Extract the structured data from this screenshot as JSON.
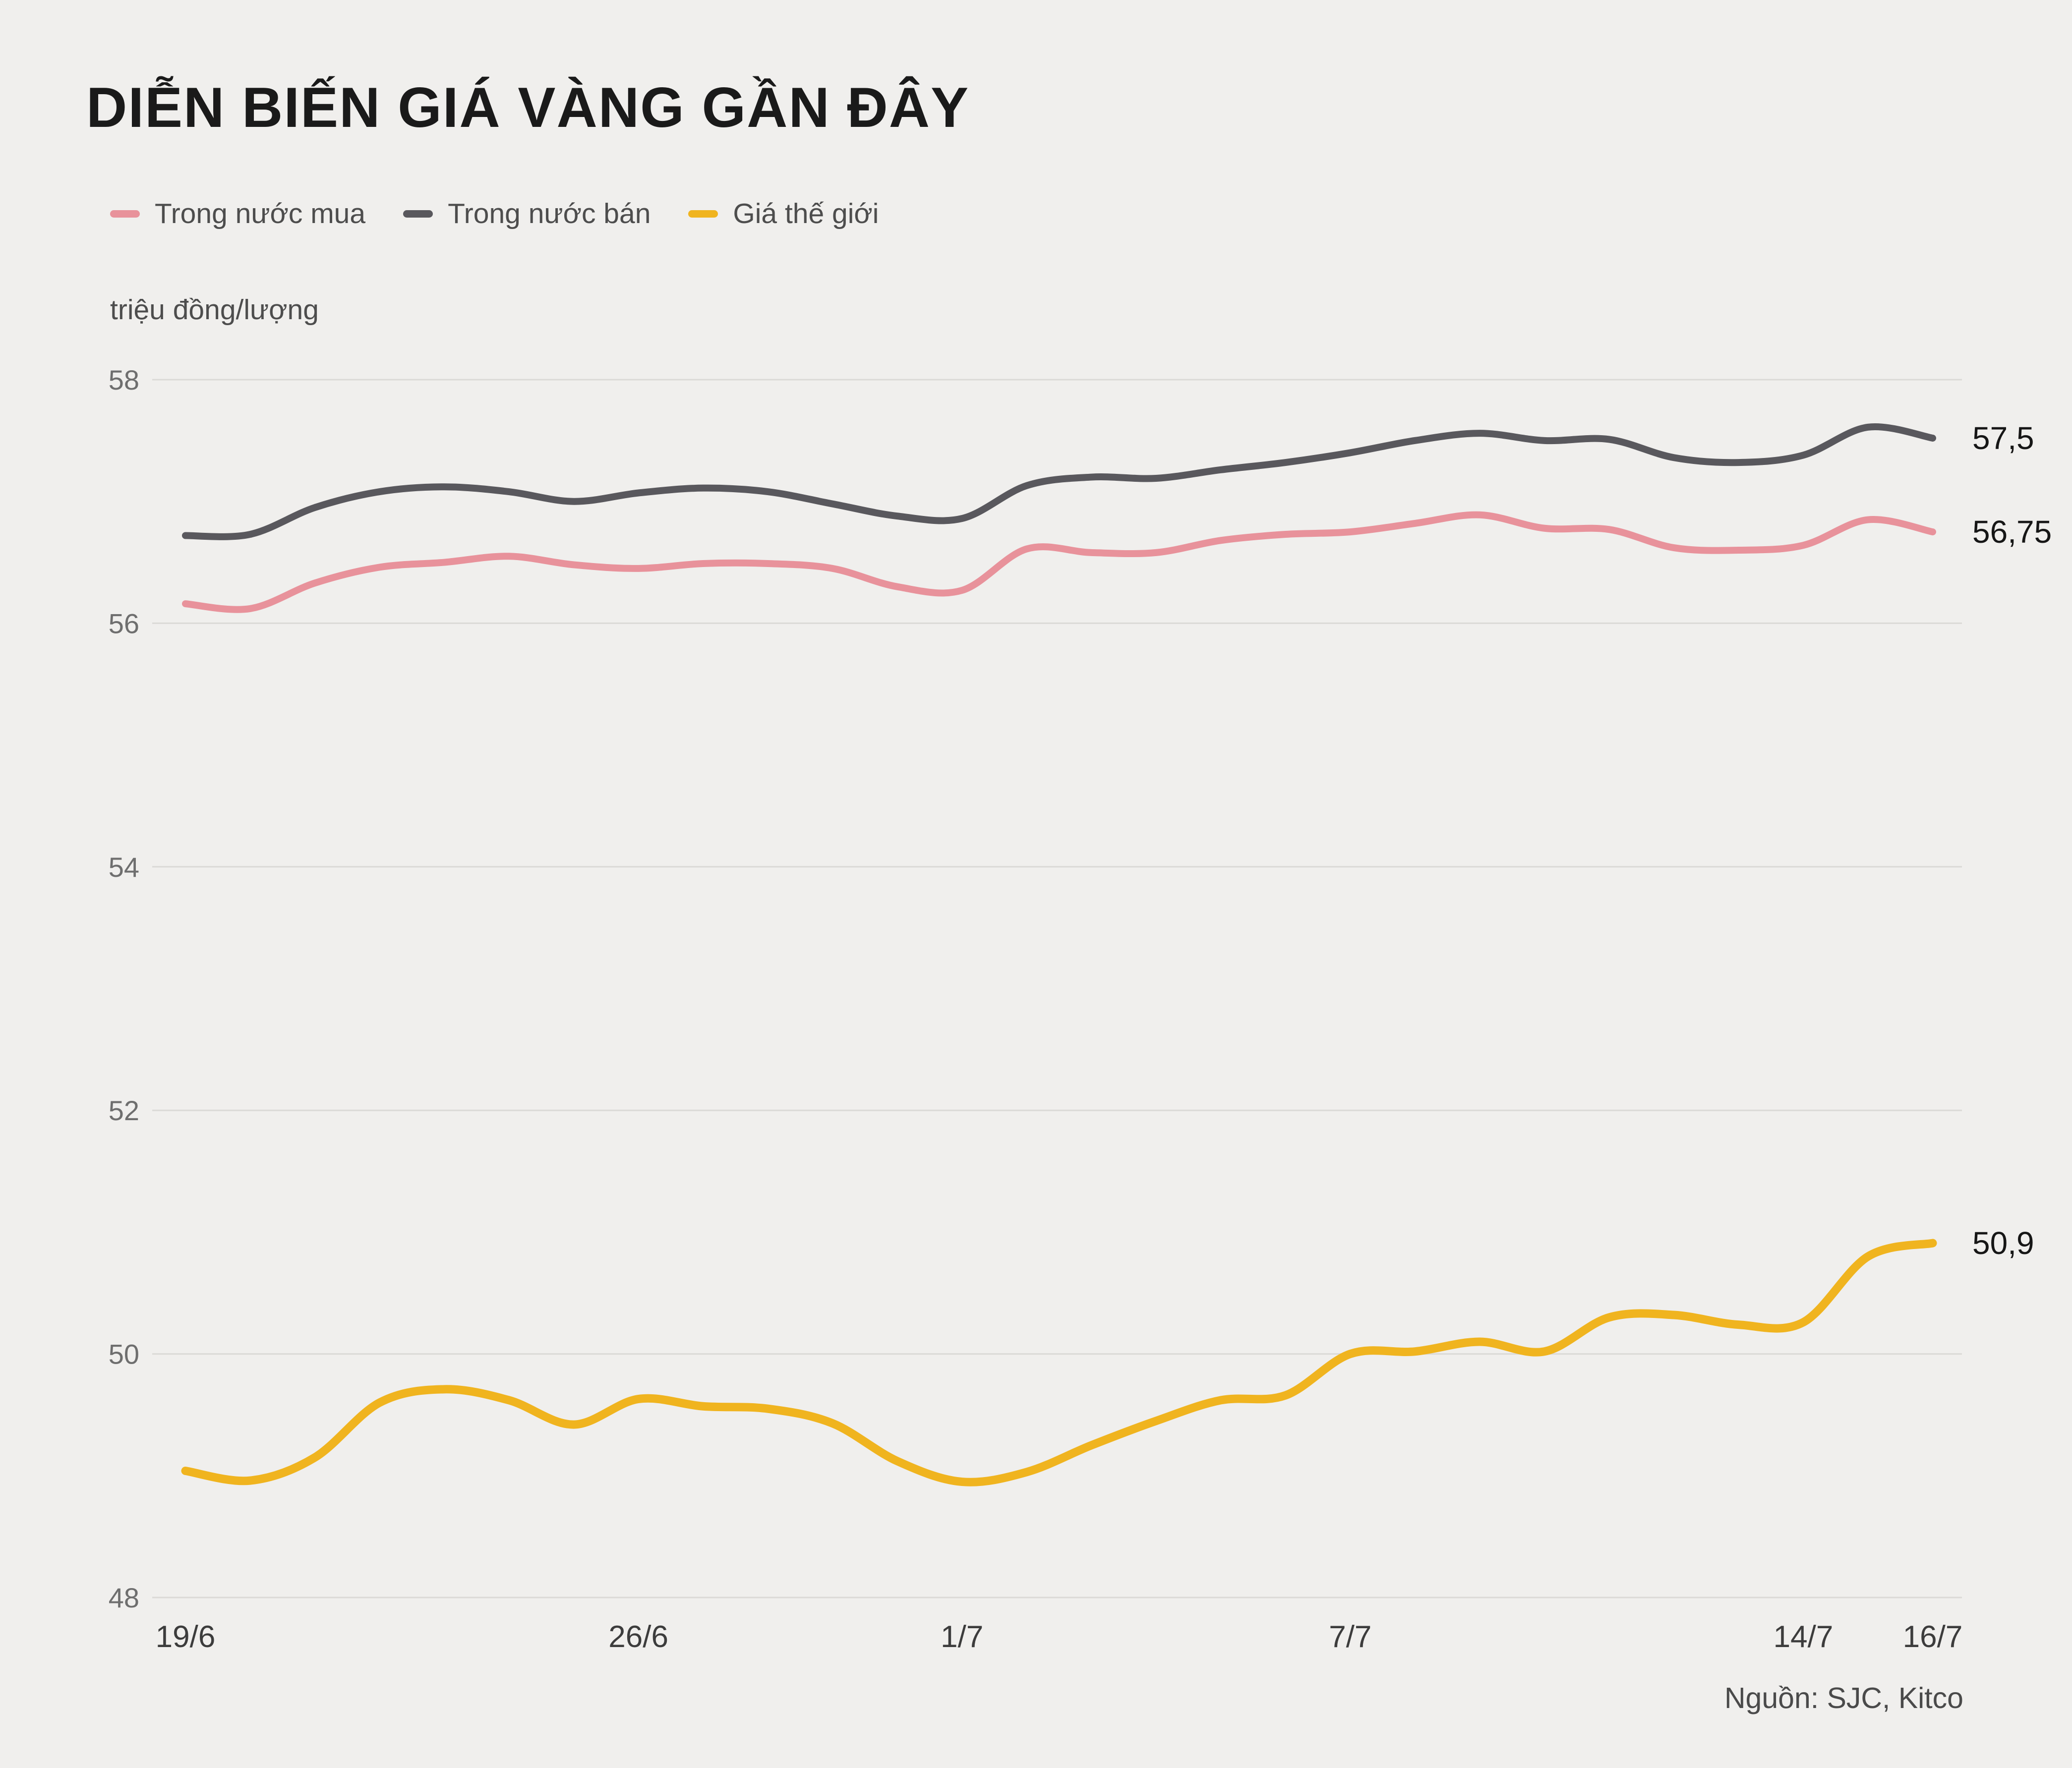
{
  "chart_data": {
    "type": "line",
    "title": "DIỄN BIẾN GIÁ VÀNG GẦN ĐÂY",
    "unit_label": "triệu đồng/lượng",
    "source": "Nguồn: SJC, Kitco",
    "background": "#f0efed",
    "grid_color": "#dbdad7",
    "grid": true,
    "legend_position": "top-left",
    "ylim": [
      48,
      58
    ],
    "y_ticks": [
      48,
      50,
      52,
      54,
      56,
      58
    ],
    "x": [
      "19/6",
      "20/6",
      "21/6",
      "22/6",
      "23/6",
      "24/6",
      "25/6",
      "26/6",
      "27/6",
      "28/6",
      "29/6",
      "30/6",
      "1/7",
      "2/7",
      "3/7",
      "4/7",
      "5/7",
      "6/7",
      "7/7",
      "8/7",
      "9/7",
      "10/7",
      "11/7",
      "12/7",
      "13/7",
      "14/7",
      "15/7",
      "16/7"
    ],
    "x_ticks": [
      {
        "index": 0,
        "label": "19/6"
      },
      {
        "index": 7,
        "label": "26/6"
      },
      {
        "index": 12,
        "label": "1/7"
      },
      {
        "index": 18,
        "label": "7/7"
      },
      {
        "index": 25,
        "label": "14/7"
      },
      {
        "index": 27,
        "label": "16/7"
      }
    ],
    "series": [
      {
        "id": "trong-nuoc-mua",
        "name": "Trong nước mua",
        "color": "#e8929b",
        "end_label": "56,75",
        "values": [
          56.16,
          56.12,
          56.33,
          56.46,
          56.5,
          56.55,
          56.48,
          56.45,
          56.49,
          56.49,
          56.45,
          56.3,
          56.27,
          56.61,
          56.58,
          56.58,
          56.68,
          56.73,
          56.75,
          56.82,
          56.89,
          56.78,
          56.77,
          56.62,
          56.6,
          56.64,
          56.85,
          56.75
        ]
      },
      {
        "id": "trong-nuoc-ban",
        "name": "Trong nước bán",
        "color": "#59585d",
        "end_label": "57,5",
        "values": [
          56.72,
          56.73,
          56.95,
          57.08,
          57.12,
          57.08,
          57.0,
          57.07,
          57.11,
          57.08,
          56.98,
          56.88,
          56.86,
          57.13,
          57.2,
          57.19,
          57.26,
          57.32,
          57.4,
          57.5,
          57.56,
          57.5,
          57.51,
          57.36,
          57.32,
          57.38,
          57.61,
          57.52
        ]
      },
      {
        "id": "gia-the-gioi",
        "name": "Giá thế giới",
        "color": "#f0b41f",
        "end_label": "50,9",
        "values": [
          49.04,
          48.96,
          49.15,
          49.6,
          49.71,
          49.62,
          49.42,
          49.63,
          49.57,
          49.55,
          49.43,
          49.12,
          48.95,
          49.03,
          49.25,
          49.45,
          49.62,
          49.66,
          50.0,
          50.02,
          50.1,
          50.02,
          50.3,
          50.32,
          50.24,
          50.26,
          50.8,
          50.91
        ]
      }
    ]
  }
}
